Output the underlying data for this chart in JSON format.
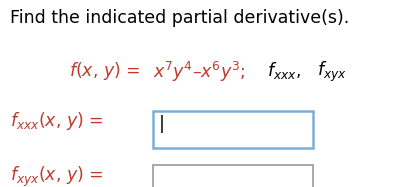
{
  "bg_color": "#ffffff",
  "header_text": "Find the indicated partial derivative(s).",
  "header_color": "#000000",
  "header_fontsize": 12.5,
  "formula_color": "#c0392b",
  "black_color": "#000000",
  "formula_fontsize": 12.5,
  "label_fontsize": 12.5,
  "label_color": "#c0392b",
  "box1_edgecolor": "#7ab0d8",
  "box2_edgecolor": "#999999",
  "cursor_color": "#000000"
}
